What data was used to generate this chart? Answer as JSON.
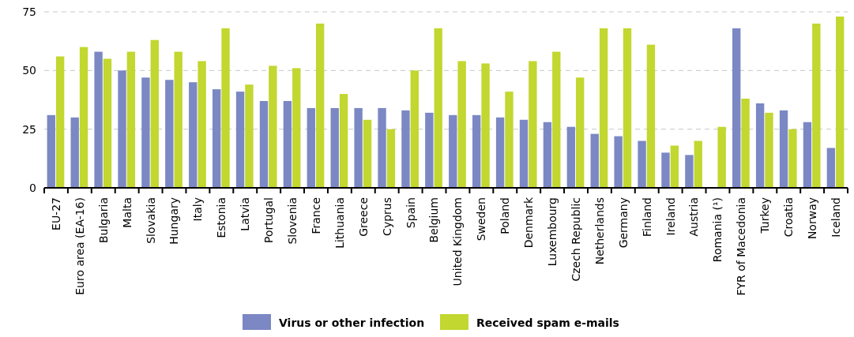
{
  "chart_data": {
    "type": "bar",
    "categories": [
      "EU-27",
      "Euro area (EA-16)",
      "Bulgaria",
      "Malta",
      "Slovakia",
      "Hungary",
      "Italy",
      "Estonia",
      "Latvia",
      "Portugal",
      "Slovenia",
      "France",
      "Lithuania",
      "Greece",
      "Cyprus",
      "Spain",
      "Belgium",
      "United Kingdom",
      "Sweden",
      "Poland",
      "Denmark",
      "Luxembourg",
      "Czech Republic",
      "Netherlands",
      "Germany",
      "Finland",
      "Ireland",
      "Austria",
      "Romania (¹)",
      "FYR of Macedonia",
      "Turkey",
      "Croatia",
      "Norway",
      "Iceland"
    ],
    "series": [
      {
        "name": "Virus or other infection",
        "color": "#7b88c4",
        "values": [
          31,
          30,
          58,
          50,
          47,
          46,
          45,
          42,
          41,
          37,
          37,
          34,
          34,
          34,
          34,
          33,
          32,
          31,
          31,
          30,
          29,
          28,
          26,
          23,
          22,
          20,
          15,
          14,
          null,
          68,
          36,
          33,
          28,
          17
        ]
      },
      {
        "name": "Received spam e-mails",
        "color": "#c2d72f",
        "values": [
          56,
          60,
          55,
          58,
          63,
          58,
          54,
          68,
          44,
          52,
          51,
          70,
          40,
          29,
          25,
          50,
          68,
          54,
          53,
          41,
          54,
          58,
          47,
          68,
          68,
          61,
          18,
          20,
          26,
          38,
          32,
          25,
          70,
          73
        ]
      }
    ],
    "ylim": [
      0,
      75
    ],
    "yticks": [
      0,
      25,
      50,
      75
    ],
    "grid": "y",
    "legend": "bottom"
  }
}
